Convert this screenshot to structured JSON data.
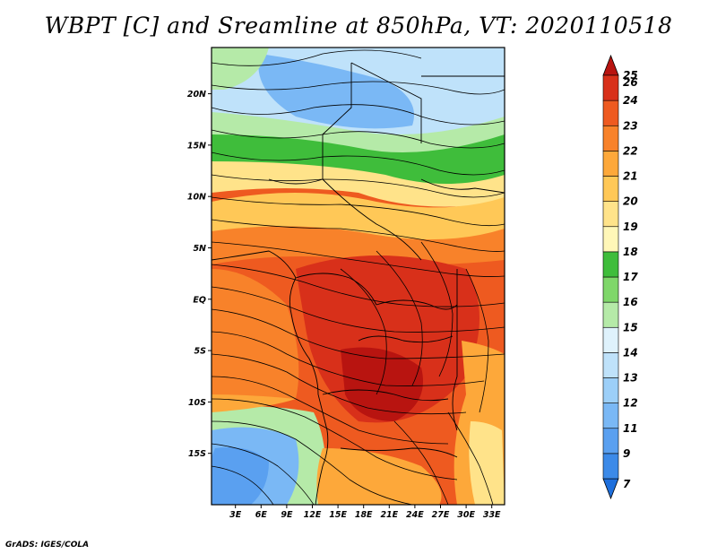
{
  "title": "WBPT [C] and Sreamline at 850hPa, VT: 2020110518",
  "credit": "GrADS: IGES/COLA",
  "map": {
    "lat_ticks": [
      "20N",
      "15N",
      "10N",
      "5N",
      "EQ",
      "5S",
      "10S",
      "15S"
    ],
    "lat_values": [
      20,
      15,
      10,
      5,
      0,
      -5,
      -10,
      -15
    ],
    "lon_ticks": [
      "3E",
      "6E",
      "9E",
      "12E",
      "15E",
      "18E",
      "21E",
      "24E",
      "27E",
      "30E",
      "33E"
    ],
    "lon_values": [
      3,
      6,
      9,
      12,
      15,
      18,
      21,
      24,
      27,
      30,
      33
    ],
    "lat_range": [
      -20,
      24.5
    ],
    "lon_range": [
      0.2,
      34.5
    ]
  },
  "colorbar": {
    "labels": [
      "7",
      "9",
      "11",
      "12",
      "13",
      "14",
      "15",
      "16",
      "17",
      "18",
      "19",
      "20",
      "21",
      "22",
      "23",
      "24",
      "25",
      "26"
    ],
    "colors": [
      "#1e6fdc",
      "#3c8ae8",
      "#5aa0f0",
      "#7ab8f5",
      "#9ccff8",
      "#bfe2fa",
      "#dff2fc",
      "#b5eaa8",
      "#7fd76a",
      "#3fbd3b",
      "#fff7b8",
      "#ffe38a",
      "#ffc857",
      "#fda83a",
      "#f8822a",
      "#ee5a20",
      "#d8301a",
      "#b81410"
    ]
  },
  "legend_colors": {
    "cold": "#1e6fdc",
    "warm": "#b81410",
    "land_boundary": "#000000"
  }
}
